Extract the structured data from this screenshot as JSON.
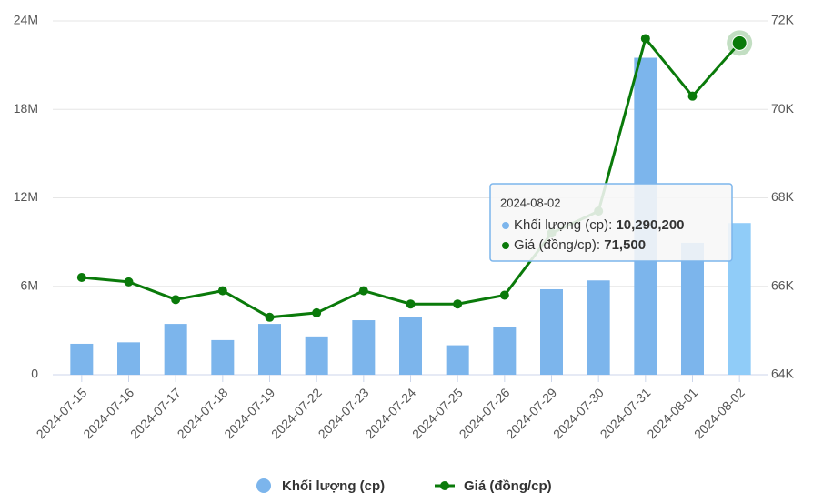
{
  "chart_data": {
    "type": "bar-line",
    "categories": [
      "2024-07-15",
      "2024-07-16",
      "2024-07-17",
      "2024-07-18",
      "2024-07-19",
      "2024-07-22",
      "2024-07-23",
      "2024-07-24",
      "2024-07-25",
      "2024-07-26",
      "2024-07-29",
      "2024-07-30",
      "2024-07-31",
      "2024-08-01",
      "2024-08-02"
    ],
    "series": [
      {
        "name": "Khối lượng (cp)",
        "type": "bar",
        "color": "#7cb5ec",
        "axis": "y",
        "values": [
          2100000,
          2200000,
          3450000,
          2350000,
          3450000,
          2600000,
          3700000,
          3900000,
          2000000,
          3250000,
          5800000,
          6400000,
          21500000,
          8950000,
          10290200
        ],
        "value_labels": [
          null,
          null,
          null,
          null,
          null,
          null,
          null,
          null,
          null,
          null,
          null,
          null,
          null,
          null,
          "10,290,200"
        ]
      },
      {
        "name": "Giá (đồng/cp)",
        "type": "line",
        "color": "#0a7a0a",
        "axis": "y2",
        "values": [
          66200,
          66100,
          65700,
          65900,
          65300,
          65400,
          65900,
          65600,
          65600,
          65800,
          67200,
          67700,
          71600,
          70300,
          71500
        ],
        "value_labels": [
          null,
          null,
          null,
          null,
          null,
          null,
          null,
          null,
          null,
          null,
          null,
          null,
          null,
          null,
          "71,500"
        ]
      }
    ],
    "active_category": "2024-08-02",
    "ylim": [
      0,
      24000000
    ],
    "yticks": [
      0,
      {
        "value": 6000000,
        "label": "6M"
      },
      {
        "value": 12000000,
        "label": "12M"
      },
      {
        "value": 18000000,
        "label": "18M"
      },
      {
        "value": 24000000,
        "label": "24M"
      }
    ],
    "y2lim": [
      64000,
      72000
    ],
    "y2ticks": [
      {
        "value": 64000,
        "label": "64K"
      },
      {
        "value": 66000,
        "label": "66K"
      },
      {
        "value": 68000,
        "label": "68K"
      },
      {
        "value": 70000,
        "label": "70K"
      },
      {
        "value": 72000,
        "label": "72K"
      }
    ],
    "grid": true,
    "legend": "bottom"
  }
}
